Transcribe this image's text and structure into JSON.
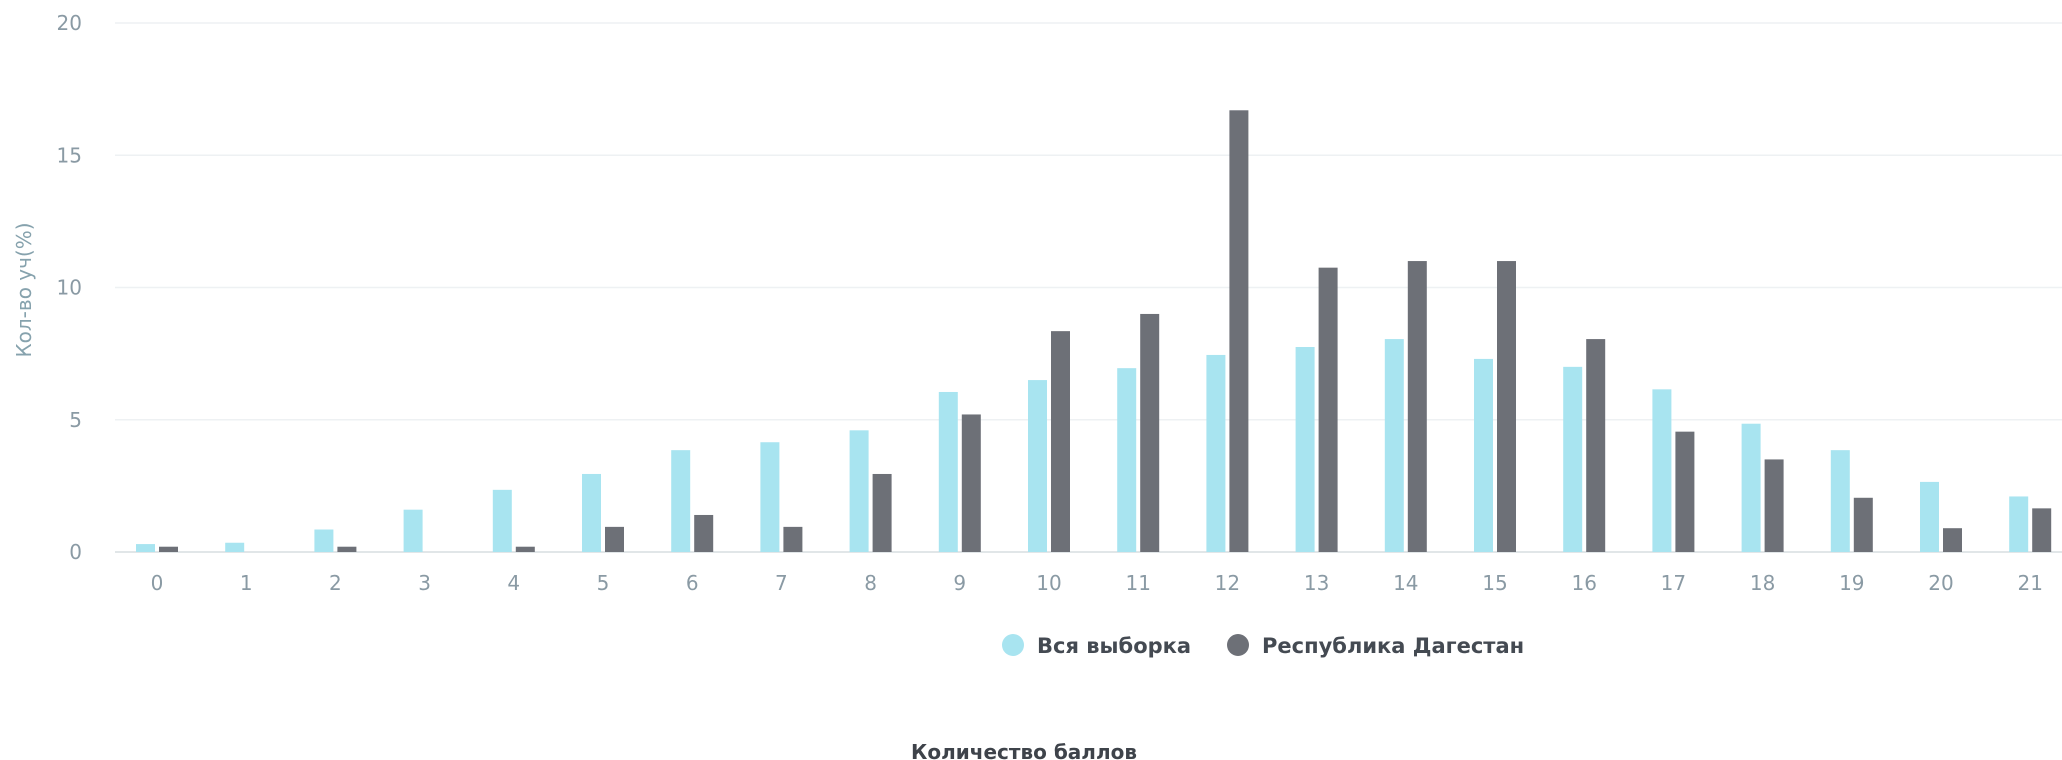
{
  "chart_data": {
    "type": "bar",
    "title": "",
    "xlabel": "Количество баллов",
    "ylabel": "Кол-во уч(%)",
    "ylim": [
      0,
      20
    ],
    "yticks": [
      "0",
      "5",
      "10",
      "15",
      "20"
    ],
    "categories": [
      "0",
      "1",
      "2",
      "3",
      "4",
      "5",
      "6",
      "7",
      "8",
      "9",
      "10",
      "11",
      "12",
      "13",
      "14",
      "15",
      "16",
      "17",
      "18",
      "19",
      "20",
      "21"
    ],
    "series": [
      {
        "name": "Вся выборка",
        "color": "#a8e4f0",
        "values": [
          0.3,
          0.35,
          0.85,
          1.6,
          2.35,
          2.95,
          3.85,
          4.15,
          4.6,
          6.05,
          6.5,
          6.95,
          7.45,
          7.75,
          8.05,
          7.3,
          7.0,
          6.15,
          4.85,
          3.85,
          2.65,
          2.1
        ]
      },
      {
        "name": "Республика Дагестан",
        "color": "#6d7077",
        "values": [
          0.2,
          0.0,
          0.2,
          0.0,
          0.2,
          0.95,
          1.4,
          0.95,
          2.95,
          5.2,
          8.35,
          9.0,
          16.7,
          10.75,
          11.0,
          11.0,
          8.05,
          4.55,
          3.5,
          2.05,
          0.9,
          1.65
        ]
      }
    ],
    "grid": true,
    "legend_position": "bottom-center"
  }
}
